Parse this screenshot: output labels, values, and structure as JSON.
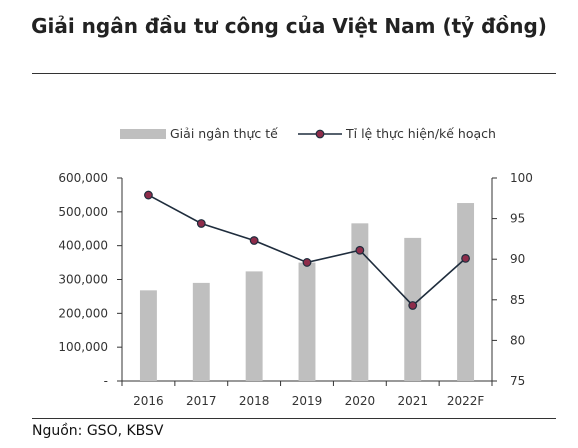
{
  "title": "Giải ngân đầu tư công của Việt Nam (tỷ đồng)",
  "source": "Nguồn:  GSO, KBSV",
  "chart_data": {
    "type": "bar+line",
    "categories": [
      "2016",
      "2017",
      "2018",
      "2019",
      "2020",
      "2021",
      "2022F"
    ],
    "series": [
      {
        "name": "Giải ngân thực tế",
        "type": "bar",
        "axis": "left",
        "color": "#bfbfbf",
        "values": [
          268000,
          290000,
          324000,
          350000,
          466000,
          423000,
          526000
        ]
      },
      {
        "name": "Tỉ lệ thực hiện/kế hoạch",
        "type": "line",
        "axis": "right",
        "color": "#1f2d3d",
        "marker_color": "#8e2c4a",
        "values": [
          97.9,
          94.4,
          92.3,
          89.6,
          91.1,
          84.3,
          90.1
        ]
      }
    ],
    "left_axis": {
      "ylim": [
        0,
        600000
      ],
      "ticks": [
        0,
        100000,
        200000,
        300000,
        400000,
        500000,
        600000
      ],
      "tick_labels": [
        "-",
        "100,000",
        "200,000",
        "300,000",
        "400,000",
        "500,000",
        "600,000"
      ]
    },
    "right_axis": {
      "ylim": [
        75,
        100
      ],
      "ticks": [
        75,
        80,
        85,
        90,
        95,
        100
      ],
      "tick_labels": [
        "75",
        "80",
        "85",
        "90",
        "95",
        "100"
      ]
    },
    "legend_position": "top",
    "grid": false
  }
}
